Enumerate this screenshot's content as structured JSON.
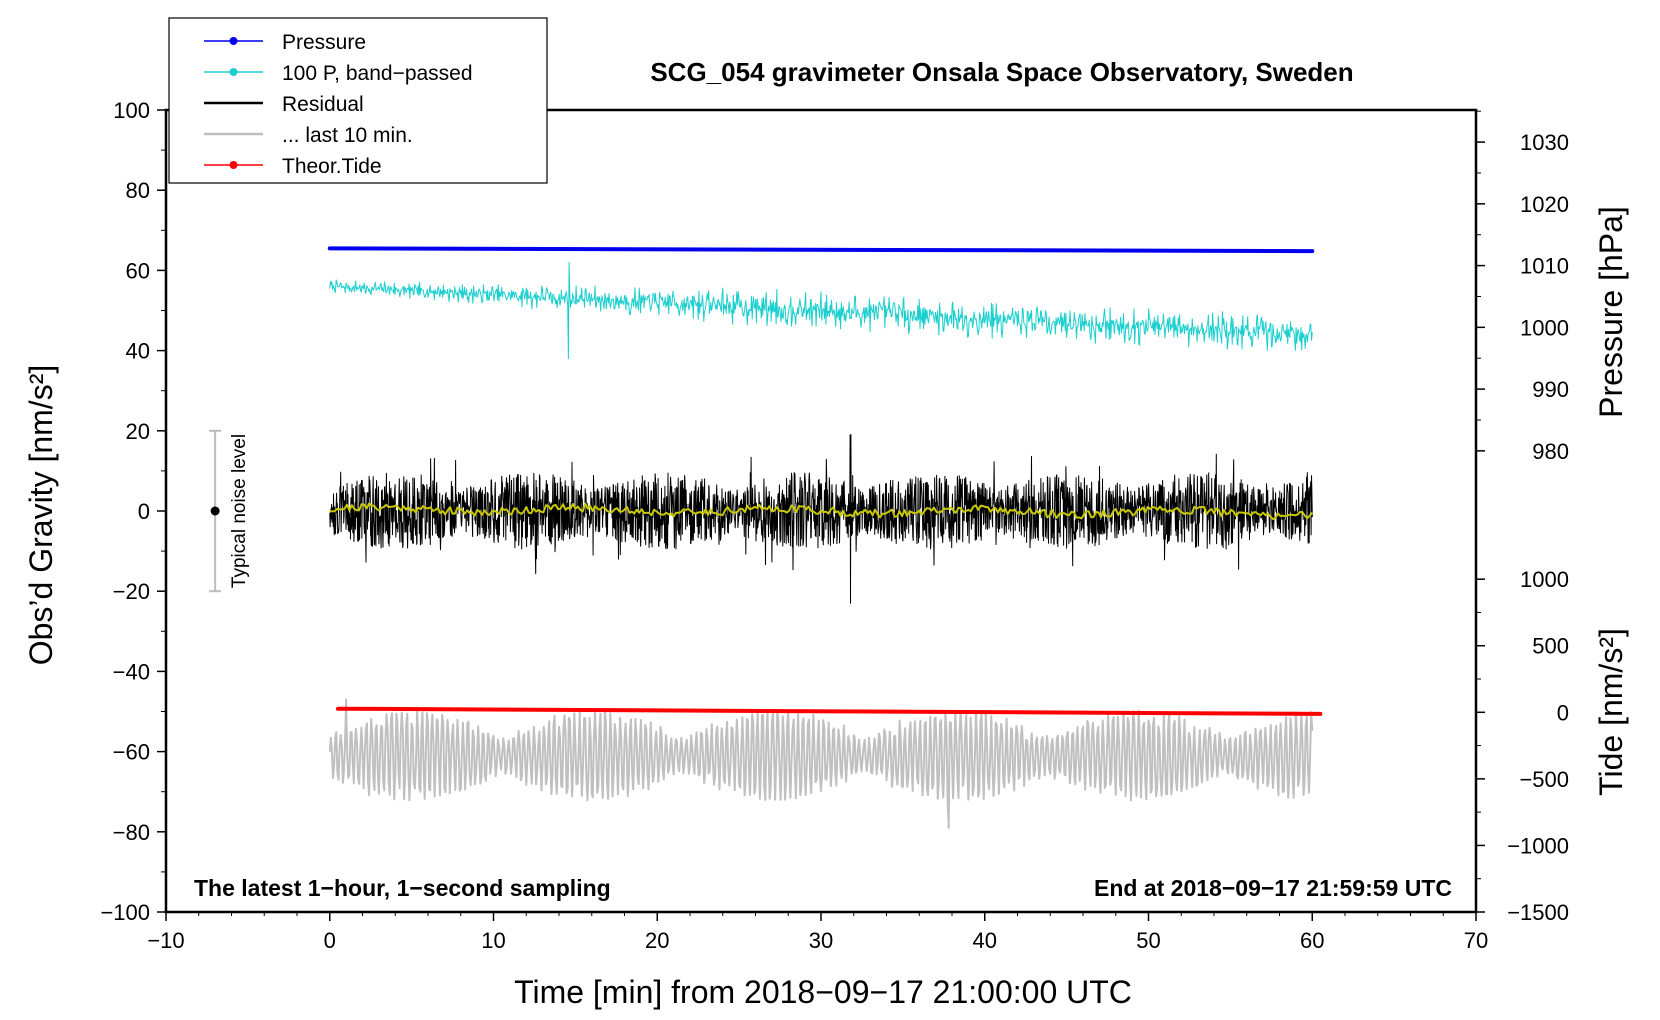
{
  "chart_data": {
    "type": "line",
    "title": "SCG_054 gravimeter Onsala Space Observatory, Sweden",
    "xlabel": "Time [min] from 2018−09−17 21:00:00 UTC",
    "ylabel_left": "Obs’d Gravity [nm/s²]",
    "ylabel_right_top": "Pressure [hPa]",
    "ylabel_right_bottom": "Tide [nm/s²]",
    "xlim": [
      -10,
      70
    ],
    "ylim": [
      -100,
      100
    ],
    "x_ticks": [
      -10,
      0,
      10,
      20,
      30,
      40,
      50,
      60,
      70
    ],
    "x_tick_labels": [
      "−10",
      "0",
      "10",
      "20",
      "30",
      "40",
      "50",
      "60",
      "70"
    ],
    "y_ticks": [
      -100,
      -80,
      -60,
      -40,
      -20,
      0,
      20,
      40,
      60,
      80,
      100
    ],
    "y_tick_labels": [
      "−100",
      "−80",
      "−60",
      "−40",
      "−20",
      "0",
      "20",
      "40",
      "60",
      "80",
      "100"
    ],
    "pressure_axis": {
      "ticks": [
        980,
        990,
        1000,
        1010,
        1020,
        1030
      ],
      "tick_labels": [
        "980",
        "990",
        "1000",
        "1010",
        "1020",
        "1030"
      ],
      "anchor_low": {
        "value": 980,
        "gravity": 15
      },
      "anchor_high": {
        "value": 1030,
        "gravity": 92
      }
    },
    "tide_axis": {
      "ticks": [
        -1500,
        -1000,
        -500,
        0,
        500,
        1000
      ],
      "tick_labels": [
        "−1500",
        "−1000",
        "−500",
        "0",
        "500",
        "1000"
      ],
      "anchor_low": {
        "value": -1500,
        "gravity": -100
      },
      "anchor_high": {
        "value": 1000,
        "gravity": -17
      }
    },
    "legend": {
      "placement": "top-left",
      "entries": [
        {
          "label": "Pressure",
          "color": "#0000ee",
          "marker": true
        },
        {
          "label": "100 P, band−passed",
          "color": "#1ccfcf",
          "marker": true
        },
        {
          "label": "Residual",
          "color": "#000000",
          "marker": false
        },
        {
          "label": "... last 10 min.",
          "color": "#c0c0c0",
          "marker": false
        },
        {
          "label": "Theor.Tide",
          "color": "#ff0000",
          "marker": true
        }
      ]
    },
    "series": [
      {
        "name": "Pressure",
        "color": "#0000ee",
        "x_range": [
          0,
          60
        ],
        "level_start": 65.5,
        "level_end": 64.8
      },
      {
        "name": "100 P, band−passed",
        "color": "#1ccfcf",
        "x_range": [
          0,
          60
        ],
        "level_start": 56,
        "level_end": 44,
        "amplitude": 5
      },
      {
        "name": "Residual",
        "color": "#000000",
        "x_range": [
          0,
          60
        ],
        "level_start": 0,
        "level_end": 0,
        "amplitude": 8,
        "min": -23,
        "max": 19
      },
      {
        "name": "Residual smoothed",
        "color": "#c8c800",
        "x_range": [
          0,
          60
        ],
        "level_start": 0.5,
        "level_end": -0.5,
        "amplitude": 1
      },
      {
        "name": "... last 10 min.",
        "color": "#c0c0c0",
        "x_range": [
          0,
          60
        ],
        "level_start": -61,
        "level_end": -61,
        "amplitude": 8,
        "min": -79,
        "max": -47
      },
      {
        "name": "Theor.Tide",
        "color": "#ff0000",
        "x_range": [
          0.5,
          60.5
        ],
        "level_start": -49.3,
        "level_end": -50.6
      }
    ],
    "noise_level": {
      "label": "Typical noise level",
      "x": -7,
      "center": 0,
      "min": -20,
      "max": 20
    },
    "annotations": {
      "bottom_left": "The latest 1−hour, 1−second sampling",
      "bottom_right": "End at 2018−09−17 21:59:59 UTC"
    }
  }
}
